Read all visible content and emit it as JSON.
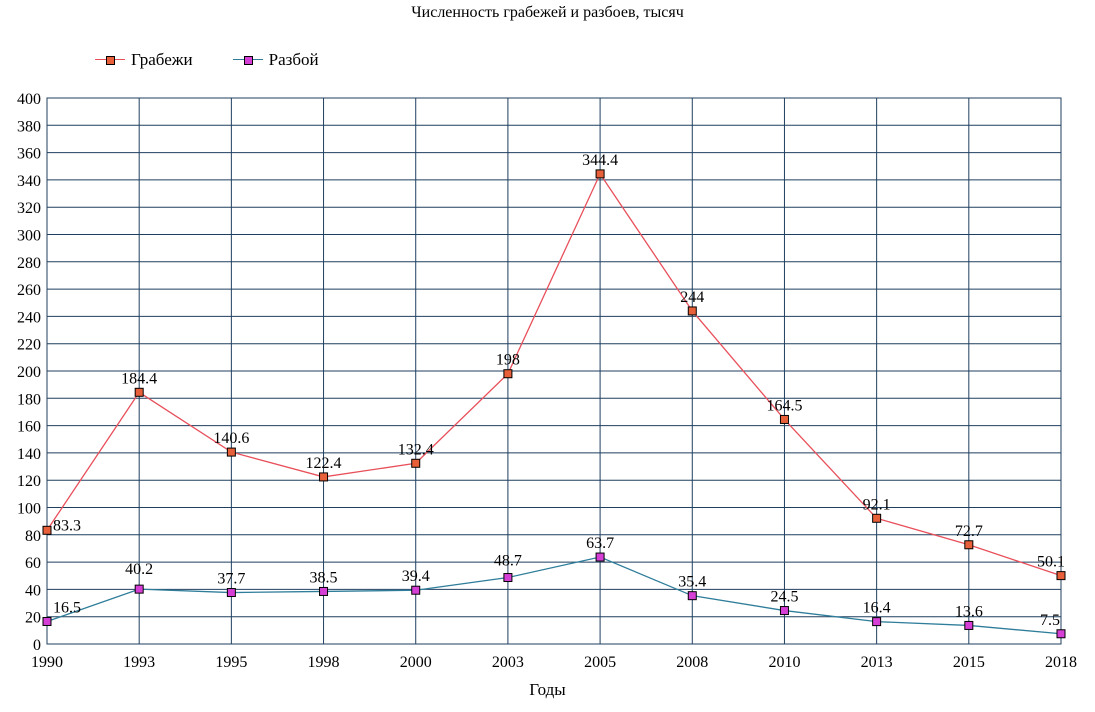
{
  "chart_data": {
    "type": "line",
    "title": "Численность грабежей и разбоев, тысяч",
    "xlabel": "Годы",
    "ylabel": "",
    "ylim": [
      0,
      400
    ],
    "yticks": [
      0,
      20,
      40,
      60,
      80,
      100,
      120,
      140,
      160,
      180,
      200,
      220,
      240,
      260,
      280,
      300,
      320,
      340,
      360,
      380,
      400
    ],
    "categories": [
      "1990",
      "1993",
      "1995",
      "1998",
      "2000",
      "2003",
      "2005",
      "2008",
      "2010",
      "2013",
      "2015",
      "2018"
    ],
    "grid": true,
    "legend_position": "top-left",
    "series": [
      {
        "name": "Грабежи",
        "line_color": "#e8505b",
        "marker_color": "#e8603a",
        "values": [
          83.3,
          184.4,
          140.6,
          122.4,
          132.4,
          198,
          344.4,
          244,
          164.5,
          92.1,
          72.7,
          50.1
        ],
        "labels": [
          "83.3",
          "184.4",
          "140.6",
          "122.4",
          "132.4",
          "198",
          "344.4",
          "244",
          "164.5",
          "92.1",
          "72.7",
          "50.1"
        ]
      },
      {
        "name": "Разбой",
        "line_color": "#2e7d9a",
        "marker_color": "#d63fd6",
        "values": [
          16.5,
          40.2,
          37.7,
          38.5,
          39.4,
          48.7,
          63.7,
          35.4,
          24.5,
          16.4,
          13.6,
          7.5
        ],
        "labels": [
          "16.5",
          "40.2",
          "37.7",
          "38.5",
          "39.4",
          "48.7",
          "63.7",
          "35.4",
          "24.5",
          "16.4",
          "13.6",
          "7.5"
        ]
      }
    ]
  }
}
